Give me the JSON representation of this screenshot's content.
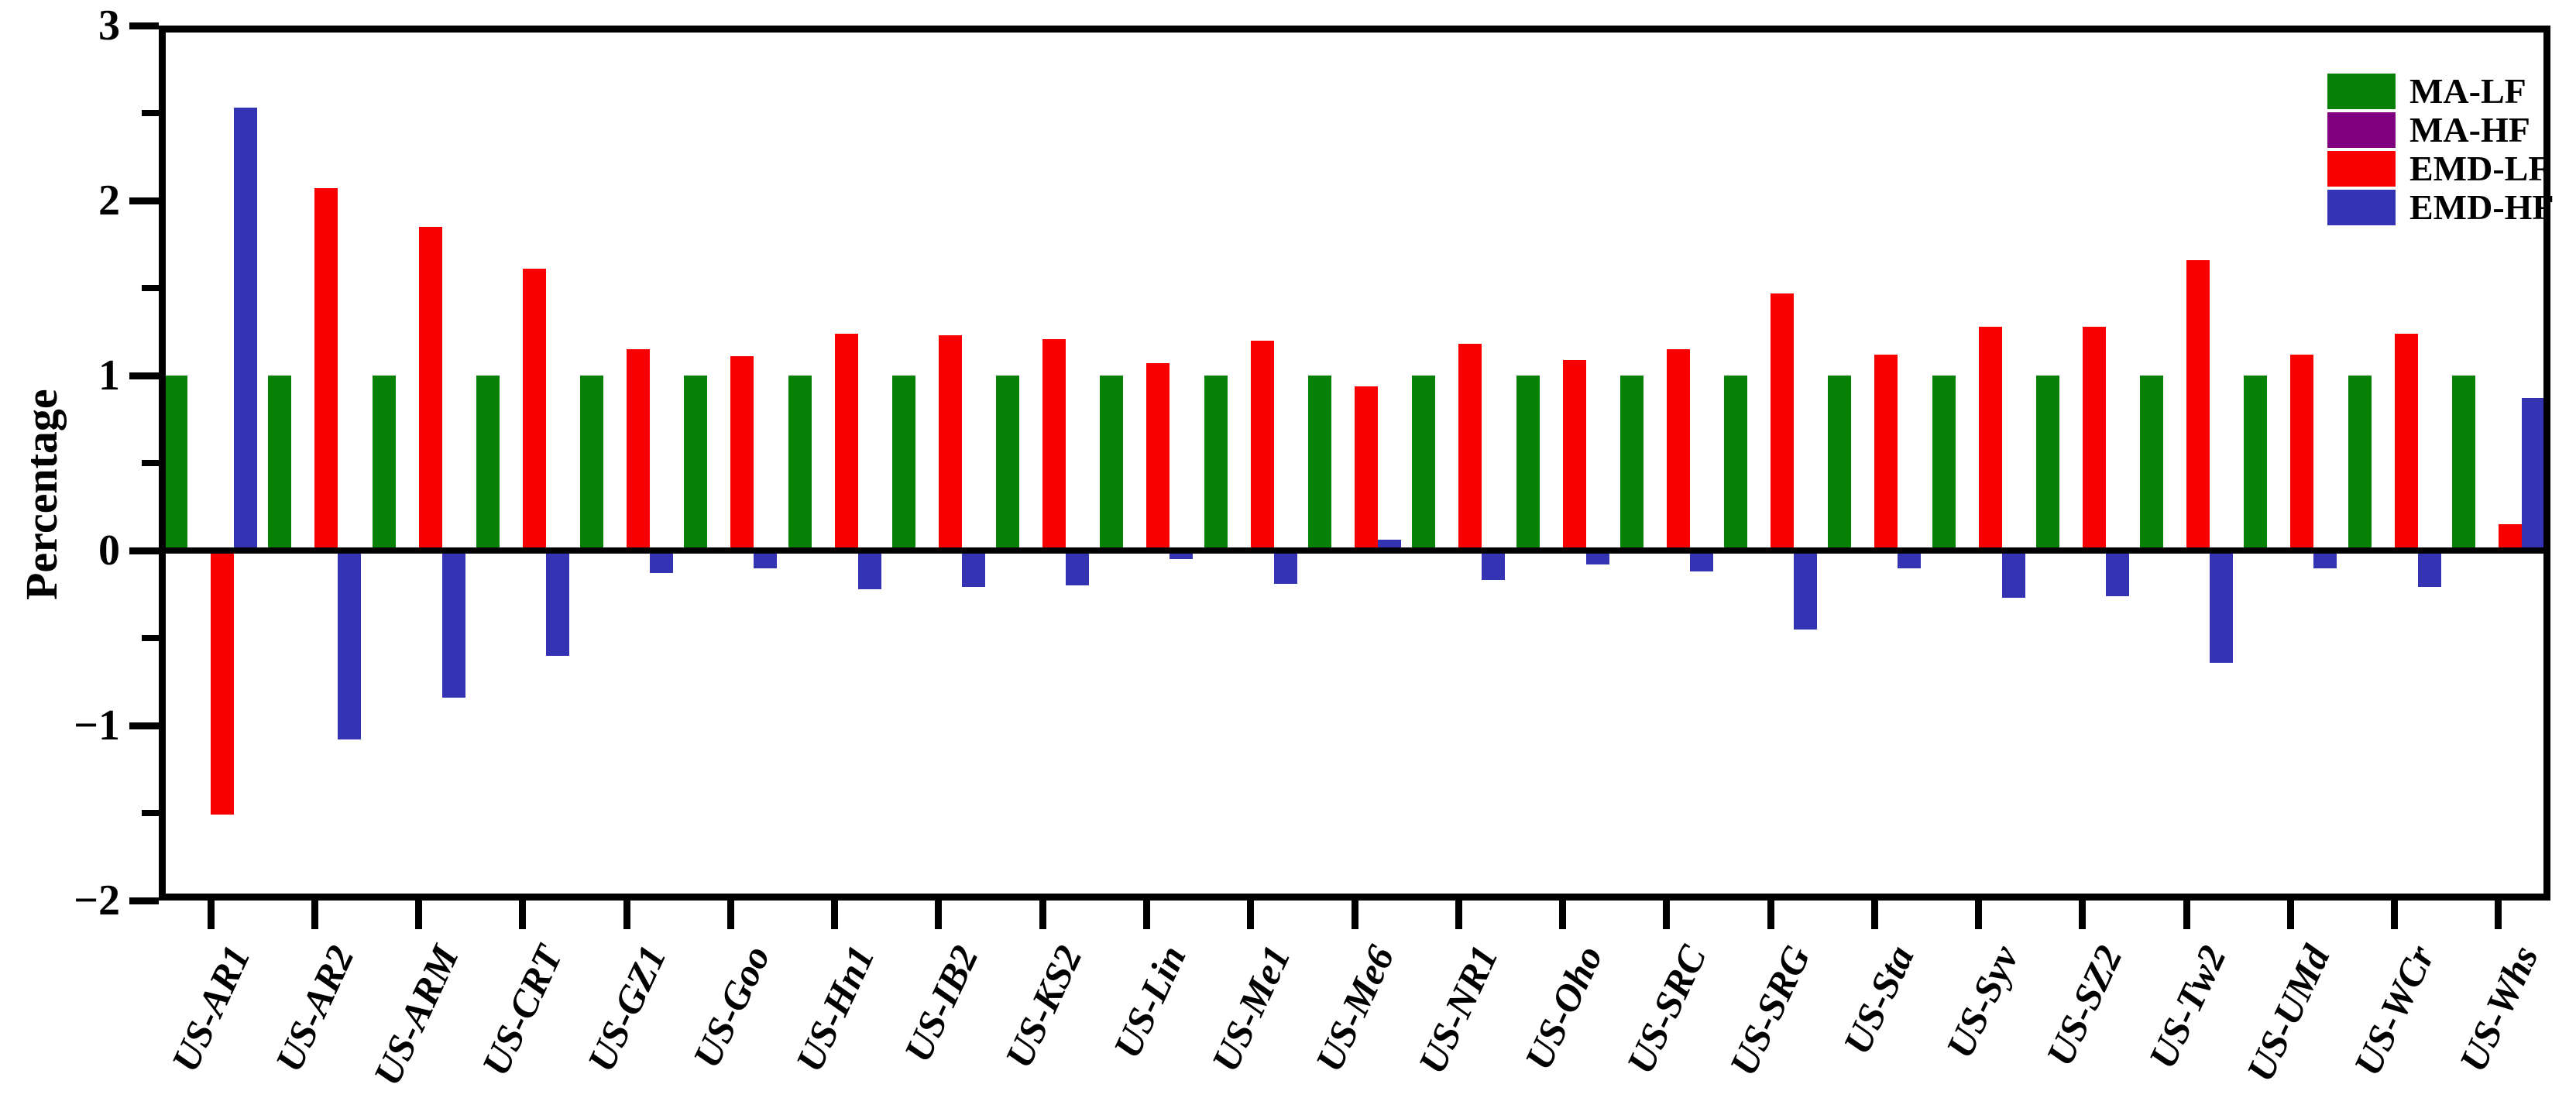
{
  "page": {
    "background": "#ffffff"
  },
  "chart_data": {
    "type": "bar",
    "title": "",
    "xlabel": "",
    "ylabel": "Percentage",
    "ylim": [
      -2,
      3
    ],
    "ytick_values": [
      3,
      2,
      1,
      0,
      -1,
      -2
    ],
    "ytick_labels": [
      "3",
      "2",
      "1",
      "0",
      "−1",
      "−2"
    ],
    "minor_ytick_values": [
      2.5,
      1.5,
      0.5,
      -0.5,
      -1.5
    ],
    "grid": false,
    "legend_position": "top-right-inside",
    "axis_color": "#000000",
    "categories": [
      "US-AR1",
      "US-AR2",
      "US-ARM",
      "US-CRT",
      "US-GZ1",
      "US-Goo",
      "US-Hn1",
      "US-IB2",
      "US-KS2",
      "US-Lin",
      "US-Me1",
      "US-Me6",
      "US-NR1",
      "US-Oho",
      "US-SRC",
      "US-SRG",
      "US-Sta",
      "US-Syv",
      "US-SZ2",
      "US-Tw2",
      "US-UMd",
      "US-WCr",
      "US-Whs"
    ],
    "series": [
      {
        "name": "MA-LF",
        "color": "#068106",
        "values": [
          1.0,
          1.0,
          1.0,
          1.0,
          1.0,
          1.0,
          1.0,
          1.0,
          1.0,
          1.0,
          1.0,
          1.0,
          1.0,
          1.0,
          1.0,
          1.0,
          1.0,
          1.0,
          1.0,
          1.0,
          1.0,
          1.0,
          1.0
        ]
      },
      {
        "name": "MA-HF",
        "color": "#800080",
        "values": [
          0,
          0,
          0,
          0,
          0,
          0,
          0,
          0,
          0,
          0,
          0,
          0,
          0,
          0,
          0,
          0,
          0,
          0,
          0,
          0,
          0,
          0,
          0
        ]
      },
      {
        "name": "EMD-LF",
        "color": "#f80000",
        "values": [
          -1.51,
          2.07,
          1.85,
          1.61,
          1.15,
          1.11,
          1.24,
          1.23,
          1.21,
          1.07,
          1.2,
          0.94,
          1.18,
          1.09,
          1.15,
          1.47,
          1.12,
          1.28,
          1.28,
          1.66,
          1.12,
          1.24,
          0.15
        ]
      },
      {
        "name": "EMD-HF",
        "color": "#3333b3",
        "values": [
          2.53,
          -1.08,
          -0.84,
          -0.6,
          -0.13,
          -0.1,
          -0.22,
          -0.21,
          -0.2,
          -0.05,
          -0.19,
          0.06,
          -0.17,
          -0.08,
          -0.12,
          -0.45,
          -0.1,
          -0.27,
          -0.26,
          -0.64,
          -0.1,
          -0.21,
          0.87
        ]
      }
    ]
  }
}
